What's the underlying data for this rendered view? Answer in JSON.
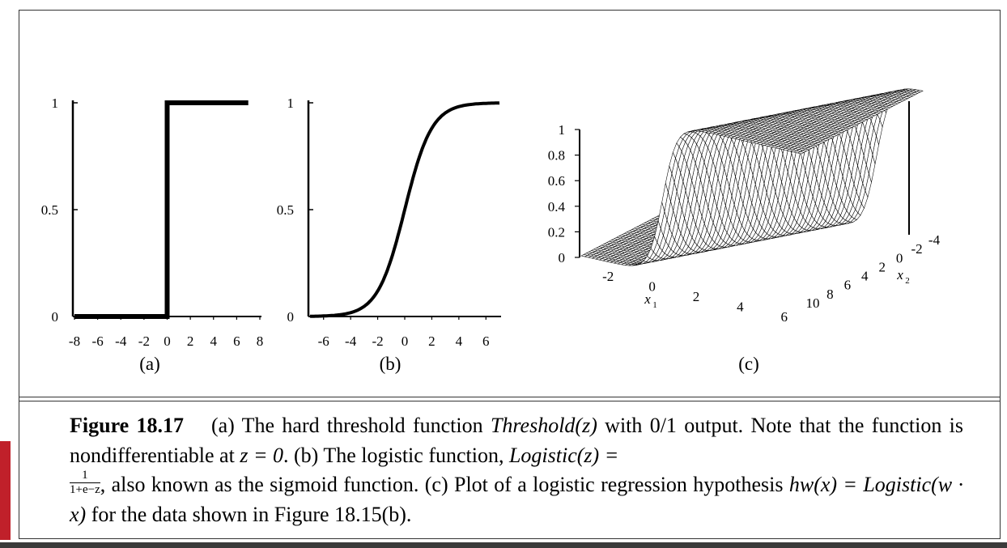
{
  "colors": {
    "border": "#333333",
    "accent_red": "#c0202a",
    "bottom_bar": "#3a3a3a",
    "ink": "#000000"
  },
  "chart_data": [
    {
      "type": "line",
      "panel_label": "(a)",
      "x": [
        -8,
        0,
        0,
        7
      ],
      "y": [
        0,
        0,
        1,
        1
      ],
      "xlim": [
        -8,
        8
      ],
      "ylim": [
        0,
        1
      ],
      "xticks": [
        "-8",
        "-6",
        "-4",
        "-2",
        "0",
        "2",
        "4",
        "6",
        "8"
      ],
      "yticks": [
        "0",
        "0.5",
        "1"
      ]
    },
    {
      "type": "line",
      "panel_label": "(b)",
      "x": [
        -7,
        -6,
        -5,
        -4,
        -3,
        -2,
        -1,
        0,
        1,
        2,
        3,
        4,
        5,
        6,
        7
      ],
      "y": [
        0.0009,
        0.0025,
        0.0067,
        0.018,
        0.047,
        0.119,
        0.269,
        0.5,
        0.731,
        0.881,
        0.953,
        0.982,
        0.9933,
        0.9975,
        0.9991
      ],
      "xlim": [
        -7,
        7
      ],
      "ylim": [
        0,
        1
      ],
      "xticks": [
        "-6",
        "-4",
        "-2",
        "0",
        "2",
        "4",
        "6"
      ],
      "yticks": [
        "0",
        "0.5",
        "1"
      ]
    },
    {
      "type": "surface",
      "panel_label": "(c)",
      "xlabel": "x1",
      "ylabel": "x2",
      "x1_range": [
        -3,
        7
      ],
      "x2_range": [
        -4,
        10
      ],
      "z_range": [
        0,
        1
      ],
      "x1ticks": [
        "-2",
        "0",
        "2",
        "4",
        "6"
      ],
      "x2ticks": [
        "10",
        "8",
        "6",
        "4",
        "2",
        "0",
        "-2",
        "-4"
      ],
      "zticks": [
        "0",
        "0.2",
        "0.4",
        "0.6",
        "0.8",
        "1"
      ]
    }
  ],
  "caption": {
    "label": "Figure 18.17",
    "part1": "(a) The hard threshold function ",
    "threshold_fn": "Threshold(z)",
    "part2": " with 0/1 output. Note that the function is nondifferentiable at ",
    "eq_z0": "z = 0",
    "part3": ". (b) The logistic function, ",
    "logistic_fn": "Logistic(z) =",
    "frac_num": "1",
    "frac_den": "1+e−z",
    "part4": ", also known as the sigmoid function. (c) Plot of a logistic regression hypothesis ",
    "hypothesis": "hw(x) = Logistic(w · x)",
    "part5": " for the data shown in Figure 18.15(b)."
  }
}
